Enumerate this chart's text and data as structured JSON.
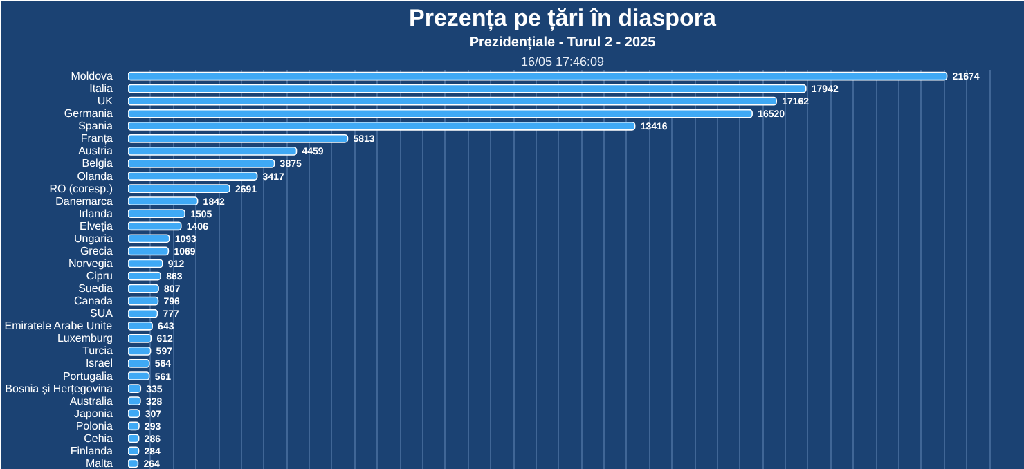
{
  "chart_data": {
    "type": "bar",
    "orientation": "horizontal",
    "title": "Prezența pe țări în diaspora",
    "subtitle": "Prezidențiale - Turul 2 - 2025",
    "annotations": [
      "16/05 17:46:09"
    ],
    "categories": [
      "Moldova",
      "Italia",
      "UK",
      "Germania",
      "Spania",
      "Franța",
      "Austria",
      "Belgia",
      "Olanda",
      "RO (coresp.)",
      "Danemarca",
      "Irlanda",
      "Elveția",
      "Ungaria",
      "Grecia",
      "Norvegia",
      "Cipru",
      "Suedia",
      "Canada",
      "SUA",
      "Emiratele Arabe Unite",
      "Luxemburg",
      "Turcia",
      "Israel",
      "Portugalia",
      "Bosnia și Herțegovina",
      "Australia",
      "Japonia",
      "Polonia",
      "Cehia",
      "Finlanda",
      "Malta"
    ],
    "values": [
      21674,
      17942,
      17162,
      16520,
      13416,
      5813,
      4459,
      3875,
      3417,
      2691,
      1842,
      1505,
      1406,
      1093,
      1069,
      912,
      863,
      807,
      796,
      777,
      643,
      612,
      597,
      564,
      561,
      335,
      328,
      307,
      293,
      286,
      284,
      264
    ],
    "color": "#3fa9f5",
    "data_labels": true,
    "grid": "x",
    "tick_labels": "y",
    "xlim": [
      0,
      23000
    ],
    "xticks": [
      {
        "value": 0,
        "label": null
      },
      {
        "value": 600,
        "label": null
      },
      {
        "value": 1200,
        "label": null
      },
      {
        "value": 1800,
        "label": null
      },
      {
        "value": 2400,
        "label": null
      },
      {
        "value": 3000,
        "label": null
      },
      {
        "value": 3600,
        "label": null
      },
      {
        "value": 4200,
        "label": null
      },
      {
        "value": 4800,
        "label": null
      },
      {
        "value": 5400,
        "label": null
      },
      {
        "value": 6000,
        "label": null
      },
      {
        "value": 6600,
        "label": null
      },
      {
        "value": 7200,
        "label": null
      },
      {
        "value": 7800,
        "label": null
      },
      {
        "value": 8400,
        "label": null
      },
      {
        "value": 9000,
        "label": null
      },
      {
        "value": 9600,
        "label": null
      },
      {
        "value": 10200,
        "label": null
      },
      {
        "value": 10800,
        "label": null
      },
      {
        "value": 11400,
        "label": null
      },
      {
        "value": 12000,
        "label": null
      },
      {
        "value": 12600,
        "label": null
      },
      {
        "value": 13200,
        "label": null
      },
      {
        "value": 13800,
        "label": null
      },
      {
        "value": 14400,
        "label": null
      },
      {
        "value": 15000,
        "label": null
      },
      {
        "value": 15600,
        "label": null
      },
      {
        "value": 16200,
        "label": null
      },
      {
        "value": 16800,
        "label": null
      },
      {
        "value": 17400,
        "label": null
      },
      {
        "value": 18000,
        "label": null
      },
      {
        "value": 18600,
        "label": null
      },
      {
        "value": 19200,
        "label": null
      },
      {
        "value": 19800,
        "label": null
      },
      {
        "value": 20400,
        "label": null
      },
      {
        "value": 21000,
        "label": null
      },
      {
        "value": 21600,
        "label": null
      },
      {
        "value": 22200,
        "label": null
      },
      {
        "value": 22800,
        "label": null
      }
    ]
  }
}
